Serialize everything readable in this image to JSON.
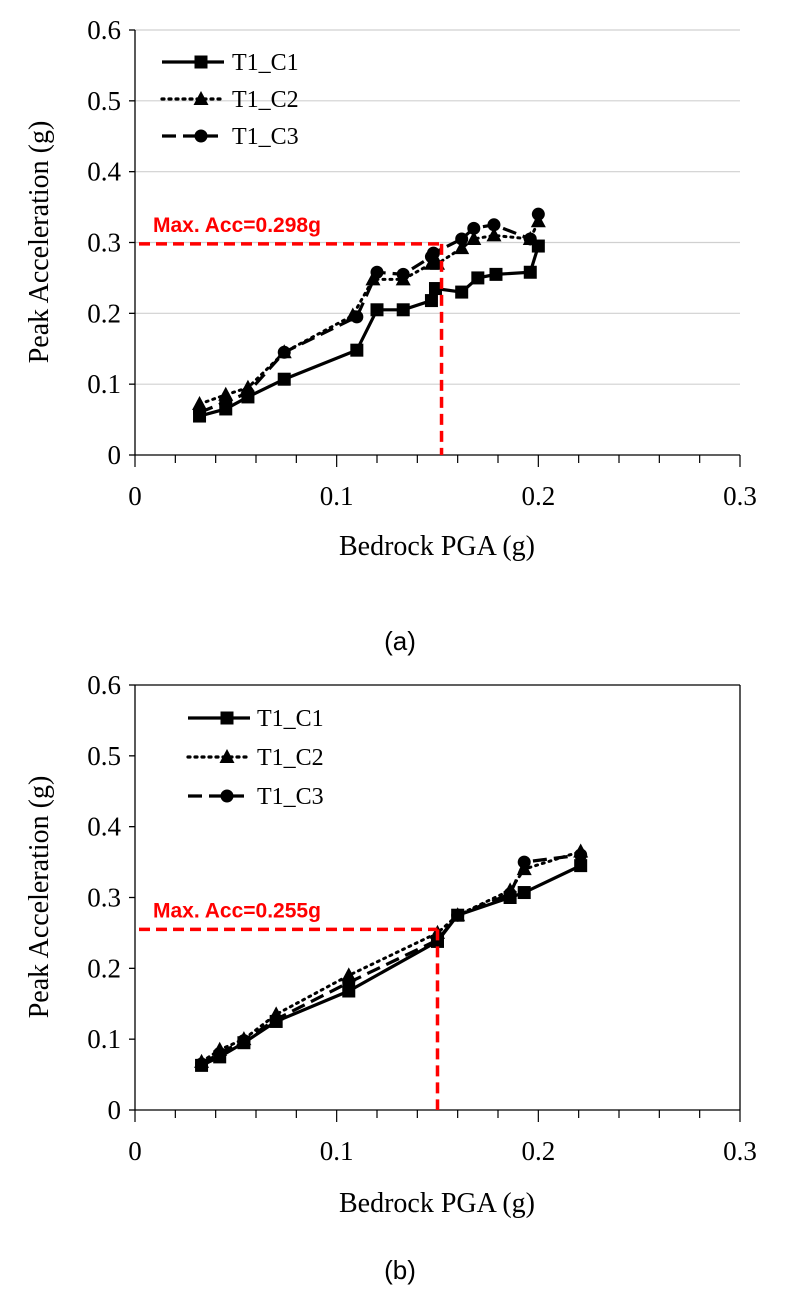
{
  "chart_data": [
    {
      "type": "line",
      "panel_label": "(a)",
      "xlabel": "Bedrock PGA (g)",
      "ylabel": "Peak Acceleration (g)",
      "xlim": [
        0,
        0.3
      ],
      "ylim": [
        0,
        0.6
      ],
      "xticks": [
        "0",
        "0.1",
        "0.2",
        "0.3"
      ],
      "yticks": [
        "0",
        "0.1",
        "0.2",
        "0.3",
        "0.4",
        "0.5",
        "0.6"
      ],
      "grid": "horizontal",
      "legend_position": "top-left",
      "series": [
        {
          "name": "T1_C1",
          "marker": "square",
          "dash": "solid",
          "x": [
            0.032,
            0.045,
            0.056,
            0.074,
            0.11,
            0.12,
            0.133,
            0.147,
            0.149,
            0.162,
            0.17,
            0.179,
            0.196,
            0.2
          ],
          "y": [
            0.055,
            0.065,
            0.082,
            0.107,
            0.148,
            0.205,
            0.205,
            0.218,
            0.235,
            0.23,
            0.25,
            0.255,
            0.258,
            0.295
          ]
        },
        {
          "name": "T1_C2",
          "marker": "triangle",
          "dash": "dotted",
          "x": [
            0.032,
            0.045,
            0.056,
            0.074,
            0.108,
            0.118,
            0.133,
            0.147,
            0.15,
            0.162,
            0.168,
            0.178,
            0.196,
            0.2
          ],
          "y": [
            0.072,
            0.085,
            0.095,
            0.145,
            0.197,
            0.248,
            0.248,
            0.27,
            0.27,
            0.292,
            0.305,
            0.31,
            0.305,
            0.33
          ]
        },
        {
          "name": "T1_C3",
          "marker": "circle",
          "dash": "dashed",
          "x": [
            0.032,
            0.045,
            0.056,
            0.074,
            0.11,
            0.12,
            0.133,
            0.147,
            0.148,
            0.162,
            0.168,
            0.178,
            0.196,
            0.2
          ],
          "y": [
            0.06,
            0.075,
            0.088,
            0.145,
            0.195,
            0.258,
            0.255,
            0.28,
            0.285,
            0.305,
            0.32,
            0.325,
            0.305,
            0.34
          ]
        }
      ],
      "annotation": {
        "text": "Max. Acc=0.298g",
        "x": 0.152,
        "y": 0.298,
        "color": "#ff0000"
      }
    },
    {
      "type": "line",
      "panel_label": "(b)",
      "xlabel": "Bedrock PGA (g)",
      "ylabel": "Peak Acceleration (g)",
      "xlim": [
        0,
        0.3
      ],
      "ylim": [
        0,
        0.6
      ],
      "xticks": [
        "0",
        "0.1",
        "0.2",
        "0.3"
      ],
      "yticks": [
        "0",
        "0.1",
        "0.2",
        "0.3",
        "0.4",
        "0.5",
        "0.6"
      ],
      "grid": "none",
      "legend_position": "top-left",
      "series": [
        {
          "name": "T1_C1",
          "marker": "square",
          "dash": "solid",
          "x": [
            0.033,
            0.042,
            0.054,
            0.07,
            0.106,
            0.15,
            0.16,
            0.186,
            0.193,
            0.221
          ],
          "y": [
            0.063,
            0.075,
            0.095,
            0.125,
            0.168,
            0.238,
            0.275,
            0.3,
            0.307,
            0.345
          ]
        },
        {
          "name": "T1_C2",
          "marker": "triangle",
          "dash": "dotted",
          "x": [
            0.033,
            0.042,
            0.054,
            0.07,
            0.106,
            0.15,
            0.16,
            0.186,
            0.193,
            0.221
          ],
          "y": [
            0.068,
            0.085,
            0.1,
            0.135,
            0.19,
            0.25,
            0.275,
            0.31,
            0.34,
            0.365
          ]
        },
        {
          "name": "T1_C3",
          "marker": "circle",
          "dash": "dashed",
          "x": [
            0.033,
            0.042,
            0.054,
            0.07,
            0.106,
            0.15,
            0.16,
            0.186,
            0.193,
            0.221
          ],
          "y": [
            0.065,
            0.08,
            0.098,
            0.128,
            0.18,
            0.24,
            0.275,
            0.305,
            0.35,
            0.36
          ]
        }
      ],
      "annotation": {
        "text": "Max. Acc=0.255g",
        "x": 0.15,
        "y": 0.255,
        "color": "#ff0000"
      }
    }
  ]
}
